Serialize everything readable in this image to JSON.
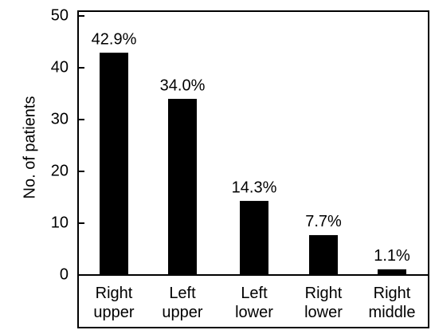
{
  "chart_data": {
    "type": "bar",
    "y_label": "No. of patients",
    "categories": [
      "Right upper",
      "Left upper",
      "Left lower",
      "Right lower",
      "Right middle"
    ],
    "values": [
      42.9,
      34.0,
      14.3,
      7.7,
      1.1
    ],
    "value_labels": [
      "42.9%",
      "34.0%",
      "14.3%",
      "7.7%",
      "1.1%"
    ],
    "color": "#000000",
    "ylim": [
      0,
      50
    ],
    "yticks": [
      0,
      10,
      20,
      30,
      40,
      50
    ],
    "grid": false
  }
}
